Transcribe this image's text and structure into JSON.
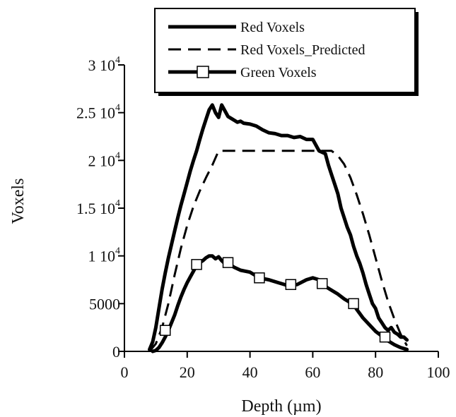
{
  "chart_data": {
    "type": "line",
    "xlabel": "Depth (µm)",
    "ylabel": "Voxels",
    "xlim": [
      0,
      100
    ],
    "ylim": [
      0,
      30000
    ],
    "xticks": [
      {
        "value": 0,
        "label": "0"
      },
      {
        "value": 20,
        "label": "20"
      },
      {
        "value": 40,
        "label": "40"
      },
      {
        "value": 60,
        "label": "60"
      },
      {
        "value": 80,
        "label": "80"
      },
      {
        "value": 100,
        "label": "100"
      }
    ],
    "yticks": [
      {
        "value": 0,
        "label": "0"
      },
      {
        "value": 5000,
        "label": "5000"
      },
      {
        "value": 10000,
        "label": "1 10",
        "exp": "4"
      },
      {
        "value": 15000,
        "label": "1.5 10",
        "exp": "4"
      },
      {
        "value": 20000,
        "label": "2 10",
        "exp": "4"
      },
      {
        "value": 25000,
        "label": "2.5 10",
        "exp": "4"
      },
      {
        "value": 30000,
        "label": "3 10",
        "exp": "4"
      }
    ],
    "grid": false,
    "legend_position": "top-right, above plot",
    "series": [
      {
        "name": "Red Voxels",
        "style": "solid",
        "color": "#000000",
        "x": [
          8,
          9,
          10,
          11,
          12,
          13,
          14,
          15,
          16,
          17,
          18,
          19,
          20,
          21,
          22,
          23,
          24,
          25,
          26,
          27,
          28,
          29,
          30,
          31,
          32,
          33,
          34,
          35,
          36,
          37,
          38,
          40,
          42,
          44,
          46,
          48,
          50,
          52,
          54,
          56,
          58,
          60,
          62,
          64,
          65,
          66,
          67,
          68,
          69,
          70,
          71,
          72,
          73,
          74,
          75,
          76,
          77,
          78,
          79,
          80,
          81,
          82,
          83,
          84,
          85,
          86,
          87,
          88,
          89,
          90
        ],
        "y": [
          200,
          1000,
          2500,
          4500,
          6500,
          8200,
          9800,
          11200,
          12600,
          14000,
          15300,
          16500,
          17700,
          18900,
          20000,
          21000,
          22200,
          23300,
          24300,
          25300,
          25800,
          25000,
          24500,
          25800,
          25200,
          24600,
          24400,
          24200,
          24000,
          24100,
          23900,
          23800,
          23600,
          23200,
          22900,
          22800,
          22600,
          22600,
          22400,
          22500,
          22200,
          22200,
          21000,
          20700,
          19500,
          18500,
          17500,
          16500,
          15000,
          14000,
          13000,
          12200,
          11000,
          10000,
          9200,
          8200,
          7000,
          6000,
          5000,
          4500,
          3500,
          3000,
          2500,
          2200,
          2500,
          2000,
          1800,
          1500,
          1500,
          1200
        ]
      },
      {
        "name": "Red Voxels_Predicted",
        "style": "dashed",
        "color": "#000000",
        "x": [
          8,
          10,
          12,
          14,
          16,
          18,
          20,
          22,
          24,
          26,
          28,
          30,
          35,
          40,
          50,
          60,
          66,
          68,
          70,
          72,
          74,
          76,
          78,
          80,
          82,
          84,
          86,
          88,
          90
        ],
        "y": [
          0,
          800,
          2500,
          5000,
          8000,
          10800,
          13200,
          15200,
          16800,
          18200,
          19500,
          21000,
          21000,
          21000,
          21000,
          21000,
          21000,
          20500,
          19600,
          18200,
          16400,
          14400,
          12200,
          9800,
          7400,
          5200,
          3400,
          1800,
          600
        ]
      },
      {
        "name": "Green Voxels",
        "style": "solid-with-markers",
        "marker": "open-square",
        "color": "#000000",
        "x": [
          9,
          10,
          11,
          12,
          13,
          14,
          15,
          16,
          17,
          18,
          19,
          20,
          21,
          22,
          23,
          24,
          25,
          26,
          27,
          28,
          29,
          30,
          31,
          32,
          33,
          35,
          37,
          40,
          43,
          46,
          49,
          52,
          55,
          58,
          60,
          62,
          63,
          64,
          66,
          68,
          70,
          72,
          73,
          74,
          76,
          78,
          80,
          82,
          83,
          84,
          86,
          88,
          90
        ],
        "y": [
          0,
          100,
          400,
          900,
          1500,
          2200,
          3000,
          3800,
          4800,
          5700,
          6500,
          7200,
          7800,
          8400,
          9000,
          9300,
          9500,
          9800,
          10000,
          10000,
          9700,
          9900,
          9500,
          9200,
          9200,
          8800,
          8500,
          8300,
          7700,
          7500,
          7200,
          6900,
          7000,
          7500,
          7700,
          7500,
          7000,
          6800,
          6400,
          6000,
          5500,
          5100,
          4900,
          4400,
          3500,
          2800,
          2100,
          1600,
          1400,
          1100,
          700,
          400,
          200
        ],
        "marker_x": [
          13,
          23,
          33,
          43,
          53,
          63,
          73,
          83
        ],
        "marker_y": [
          2200,
          9100,
          9300,
          7700,
          7000,
          7100,
          5000,
          1500
        ]
      }
    ]
  }
}
